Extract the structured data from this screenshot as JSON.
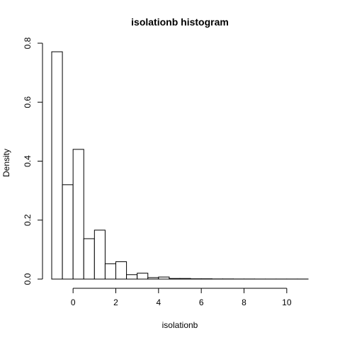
{
  "chart_data": {
    "type": "bar",
    "title": "isolationb  histogram",
    "xlabel": "isolationb",
    "ylabel": "Density",
    "bin_width": 0.5,
    "bins": [
      {
        "x0": -1.0,
        "x1": -0.5,
        "density": 0.771
      },
      {
        "x0": -0.5,
        "x1": 0.0,
        "density": 0.32
      },
      {
        "x0": 0.0,
        "x1": 0.5,
        "density": 0.44
      },
      {
        "x0": 0.5,
        "x1": 1.0,
        "density": 0.137
      },
      {
        "x0": 1.0,
        "x1": 1.5,
        "density": 0.166
      },
      {
        "x0": 1.5,
        "x1": 2.0,
        "density": 0.052
      },
      {
        "x0": 2.0,
        "x1": 2.5,
        "density": 0.059
      },
      {
        "x0": 2.5,
        "x1": 3.0,
        "density": 0.015
      },
      {
        "x0": 3.0,
        "x1": 3.5,
        "density": 0.02
      },
      {
        "x0": 3.5,
        "x1": 4.0,
        "density": 0.005
      },
      {
        "x0": 4.0,
        "x1": 4.5,
        "density": 0.007
      },
      {
        "x0": 4.5,
        "x1": 5.0,
        "density": 0.002
      },
      {
        "x0": 5.0,
        "x1": 5.5,
        "density": 0.002
      },
      {
        "x0": 5.5,
        "x1": 6.0,
        "density": 0.001
      },
      {
        "x0": 6.0,
        "x1": 6.5,
        "density": 0.001
      },
      {
        "x0": 6.5,
        "x1": 7.0,
        "density": 0.0005
      },
      {
        "x0": 7.0,
        "x1": 7.5,
        "density": 0.0005
      },
      {
        "x0": 7.5,
        "x1": 8.0,
        "density": 0.0003
      },
      {
        "x0": 8.0,
        "x1": 8.5,
        "density": 0.0003
      },
      {
        "x0": 8.5,
        "x1": 9.0,
        "density": 0.0002
      },
      {
        "x0": 9.0,
        "x1": 9.5,
        "density": 0.0002
      },
      {
        "x0": 9.5,
        "x1": 10.0,
        "density": 0.0002
      },
      {
        "x0": 10.0,
        "x1": 10.5,
        "density": 0.0002
      },
      {
        "x0": 10.5,
        "x1": 11.0,
        "density": 0.0002
      }
    ],
    "xlim": [
      -1.0,
      11.0
    ],
    "ylim": [
      0.0,
      0.8
    ],
    "x_ticks": [
      0,
      2,
      4,
      6,
      8,
      10
    ],
    "y_ticks": [
      0.0,
      0.2,
      0.4,
      0.6,
      0.8
    ],
    "x_tick_labels": [
      "0",
      "2",
      "4",
      "6",
      "8",
      "10"
    ],
    "y_tick_labels": [
      "0.0",
      "0.2",
      "0.4",
      "0.6",
      "0.8"
    ],
    "grid": false,
    "bar_fill": "#ffffff",
    "bar_stroke": "#000000"
  }
}
